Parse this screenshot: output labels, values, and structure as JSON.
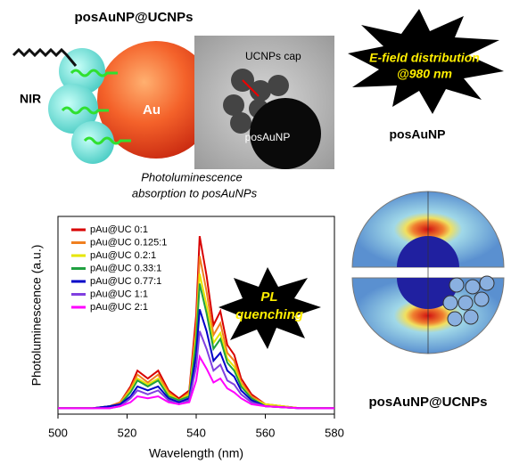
{
  "labels": {
    "title": "posAuNP@UCNPs",
    "nir": "NIR",
    "au": "Au",
    "ucnps_cap": "UCNPs cap",
    "posaunp_tem": "posAuNP",
    "caption": [
      "Photoluminescence",
      "absorption to posAuNPs"
    ],
    "efield": [
      "E-field distribution",
      "@980 nm"
    ],
    "posaunp_right": "posAuNP",
    "posaunp_ucnps": "posAuNP@UCNPs",
    "pl_quenching": [
      "PL",
      "quenching"
    ]
  },
  "chart_data": {
    "type": "line",
    "x_label": "Wavelength (nm)",
    "y_label": "Photoluminescence (a.u.)",
    "x": [
      500,
      510,
      515,
      518,
      521,
      523,
      526,
      529,
      532,
      535,
      538,
      540,
      541,
      543,
      545,
      547,
      549,
      551,
      553,
      556,
      560,
      570,
      580
    ],
    "xlim": [
      500,
      580
    ],
    "xticks": [
      500,
      520,
      540,
      560,
      580
    ],
    "ylim": [
      0,
      100
    ],
    "series": [
      {
        "name": "pAu@UC 0:1",
        "color": "#d80000",
        "values": [
          3,
          3,
          4,
          6,
          14,
          22,
          18,
          22,
          12,
          8,
          12,
          50,
          90,
          70,
          45,
          52,
          35,
          30,
          18,
          10,
          5,
          3,
          3
        ]
      },
      {
        "name": "pAu@UC 0.125:1",
        "color": "#f08020",
        "values": [
          3,
          3,
          4,
          6,
          13,
          20,
          16,
          20,
          11,
          7,
          11,
          44,
          80,
          62,
          40,
          46,
          31,
          27,
          16,
          9,
          5,
          3,
          3
        ]
      },
      {
        "name": "pAu@UC 0.2:1",
        "color": "#e6e600",
        "values": [
          3,
          3,
          4,
          5,
          12,
          18,
          15,
          18,
          10,
          7,
          10,
          40,
          71,
          55,
          36,
          41,
          28,
          24,
          15,
          8,
          5,
          3,
          3
        ]
      },
      {
        "name": "pAu@UC 0.33:1",
        "color": "#20a040",
        "values": [
          3,
          3,
          4,
          5,
          11,
          17,
          14,
          17,
          9,
          7,
          9,
          37,
          66,
          51,
          33,
          38,
          26,
          22,
          14,
          8,
          4,
          3,
          3
        ]
      },
      {
        "name": "pAu@UC 0.77:1",
        "color": "#0000c8",
        "values": [
          3,
          3,
          4,
          5,
          9,
          14,
          12,
          14,
          8,
          6,
          8,
          30,
          53,
          42,
          27,
          31,
          22,
          19,
          12,
          7,
          4,
          3,
          3
        ]
      },
      {
        "name": "pAu@UC 1:1",
        "color": "#8040e0",
        "values": [
          3,
          3,
          3,
          4,
          8,
          12,
          10,
          12,
          7,
          5,
          7,
          24,
          42,
          33,
          22,
          25,
          17,
          15,
          10,
          6,
          4,
          3,
          3
        ]
      },
      {
        "name": "pAu@UC 2:1",
        "color": "#ff00ff",
        "values": [
          3,
          3,
          3,
          4,
          6,
          9,
          8,
          9,
          6,
          5,
          6,
          17,
          29,
          23,
          16,
          18,
          13,
          11,
          8,
          5,
          4,
          3,
          3
        ]
      }
    ]
  }
}
